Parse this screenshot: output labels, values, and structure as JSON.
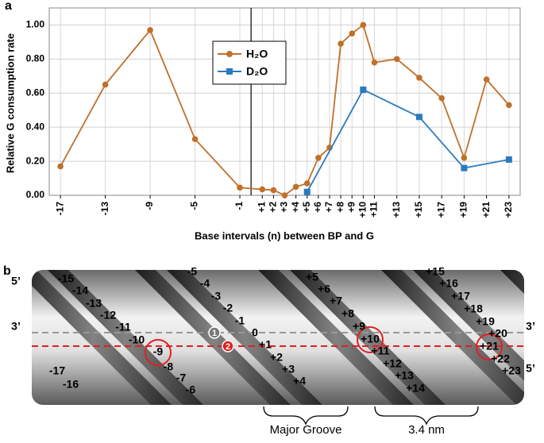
{
  "chart_data": {
    "type": "line",
    "panel_label": "a",
    "xlabel": "Base intervals (n) between BP and G",
    "ylabel": "Relative G consumption rate",
    "xlim": [
      -18,
      24
    ],
    "xticks": [
      -17,
      -13,
      -9,
      -5,
      -1,
      {
        "value": 1,
        "label": "+1"
      },
      {
        "value": 2,
        "label": "+2"
      },
      {
        "value": 3,
        "label": "+3"
      },
      {
        "value": 4,
        "label": "+4"
      },
      {
        "value": 5,
        "label": "+5"
      },
      {
        "value": 6,
        "label": "+6"
      },
      {
        "value": 7,
        "label": "+7"
      },
      {
        "value": 8,
        "label": "+8"
      },
      {
        "value": 9,
        "label": "+9"
      },
      {
        "value": 10,
        "label": "+10"
      },
      {
        "value": 11,
        "label": "+11"
      },
      {
        "value": 13,
        "label": "+13"
      },
      {
        "value": 15,
        "label": "+15"
      },
      {
        "value": 17,
        "label": "+17"
      },
      {
        "value": 19,
        "label": "+19"
      },
      {
        "value": 21,
        "label": "+21"
      },
      {
        "value": 23,
        "label": "+23"
      }
    ],
    "ylim": [
      0,
      1.1
    ],
    "yticks": [
      {
        "value": 0,
        "label": "0.00"
      },
      {
        "value": 0.2,
        "label": "0.20"
      },
      {
        "value": 0.4,
        "label": "0.40"
      },
      {
        "value": 0.6,
        "label": "0.60"
      },
      {
        "value": 0.8,
        "label": "0.80"
      },
      {
        "value": 1.0,
        "label": "1.00"
      }
    ],
    "grid": true,
    "legend": "upper center",
    "series": [
      {
        "name": "H₂O",
        "color": "#c0702a",
        "marker": "circle",
        "x": [
          -17,
          -13,
          -9,
          -5,
          -1,
          1,
          2,
          3,
          4,
          5,
          6,
          7,
          8,
          9,
          10,
          11,
          13,
          15,
          17,
          19,
          21,
          23
        ],
        "values": [
          0.17,
          0.65,
          0.97,
          0.33,
          0.045,
          0.035,
          0.03,
          0.0,
          0.05,
          0.07,
          0.22,
          0.28,
          0.89,
          0.95,
          1.0,
          0.78,
          0.8,
          0.69,
          0.57,
          0.22,
          0.68,
          0.53
        ]
      },
      {
        "name": "D₂O",
        "color": "#2a7ac0",
        "marker": "square",
        "x": [
          5,
          10,
          15,
          19,
          23
        ],
        "values": [
          0.02,
          0.62,
          0.46,
          0.16,
          0.21
        ]
      }
    ]
  },
  "diagram": {
    "panel_label": "b",
    "strand_labels": [
      "5’",
      "3’",
      "3’",
      "5’"
    ],
    "markers": [
      "1",
      "2"
    ],
    "positions": [
      "-17",
      "-16",
      "-15",
      "-14",
      "-13",
      "-12",
      "-11",
      "-10",
      "-9",
      "-8",
      "-7",
      "-6",
      "-5",
      "-4",
      "-3",
      "-2",
      "-1",
      "0",
      "+1",
      "+2",
      "+3",
      "+4",
      "+5",
      "+6",
      "+7",
      "+8",
      "+9",
      "+10",
      "+11",
      "+12",
      "+13",
      "+14",
      "+15",
      "+16",
      "+17",
      "+18",
      "+19",
      "+20",
      "+21",
      "+22",
      "+23"
    ],
    "groove_label": "Major Groove",
    "pitch_label": "3.4 nm"
  }
}
